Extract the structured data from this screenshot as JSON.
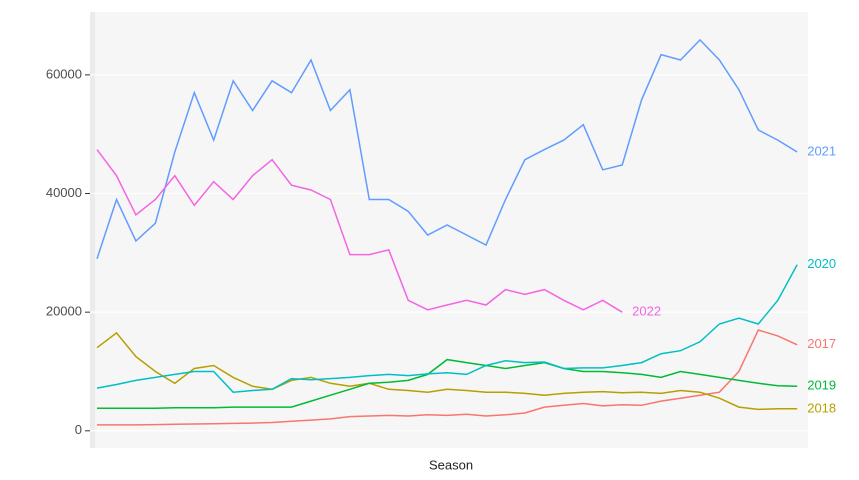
{
  "chart_data": {
    "type": "line",
    "x_label": "Season",
    "x": [
      1,
      11,
      21,
      31,
      41,
      51,
      61,
      71,
      81,
      91,
      101,
      111,
      121,
      131,
      141,
      151,
      161,
      171,
      181,
      191,
      201,
      211,
      221,
      231,
      241,
      251,
      261,
      271,
      281,
      291,
      301,
      311,
      321,
      331,
      341,
      351,
      361
    ],
    "xlim": [
      1,
      365
    ],
    "ylim": [
      -2900,
      70600
    ],
    "yticks": [
      0,
      20000,
      40000,
      60000
    ],
    "grid": true,
    "series": [
      {
        "name": "2017",
        "color": "#F8766D",
        "values": [
          1000,
          1000,
          1000,
          1050,
          1100,
          1150,
          1200,
          1250,
          1300,
          1400,
          1600,
          1800,
          2000,
          2400,
          2500,
          2600,
          2500,
          2700,
          2600,
          2800,
          2500,
          2700,
          3000,
          4000,
          4300,
          4600,
          4200,
          4400,
          4300,
          5000,
          5500,
          6000,
          6500,
          10000,
          17000,
          16000,
          14500
        ]
      },
      {
        "name": "2018",
        "color": "#B79F00",
        "values": [
          14000,
          16500,
          12500,
          10000,
          8000,
          10500,
          11000,
          9000,
          7500,
          7000,
          8500,
          9000,
          8000,
          7500,
          8000,
          7000,
          6800,
          6500,
          7000,
          6800,
          6500,
          6500,
          6300,
          6000,
          6300,
          6500,
          6600,
          6400,
          6500,
          6300,
          6800,
          6500,
          5500,
          4000,
          3600,
          3700,
          3700
        ]
      },
      {
        "name": "2019",
        "color": "#00BA38",
        "values": [
          3800,
          3800,
          3800,
          3800,
          3900,
          3900,
          3900,
          4000,
          4000,
          4000,
          4000,
          5000,
          6000,
          7000,
          8000,
          8200,
          8500,
          9500,
          12000,
          11500,
          11000,
          10500,
          11000,
          11500,
          10500,
          10000,
          10000,
          9800,
          9500,
          9000,
          10000,
          9500,
          9000,
          8500,
          8000,
          7600,
          7500
        ]
      },
      {
        "name": "2020",
        "color": "#00BFC4",
        "values": [
          7200,
          7800,
          8500,
          9000,
          9500,
          10000,
          10000,
          6500,
          6800,
          7000,
          8800,
          8600,
          8800,
          9000,
          9300,
          9500,
          9300,
          9600,
          9800,
          9500,
          11000,
          11800,
          11500,
          11600,
          10500,
          10600,
          10600,
          11000,
          11500,
          13000,
          13500,
          15000,
          18000,
          19000,
          18000,
          22000,
          28000
        ]
      },
      {
        "name": "2021",
        "color": "#619CFF",
        "values": [
          29000,
          39000,
          32000,
          35000,
          47000,
          57000,
          49000,
          59000,
          54000,
          59000,
          57000,
          62500,
          54000,
          57500,
          39000,
          39000,
          37000,
          33000,
          34700,
          33000,
          31300,
          39000,
          45700,
          47400,
          49000,
          51600,
          44000,
          44800,
          55800,
          63400,
          62500,
          65900,
          62500,
          57500,
          50700,
          49000,
          47000
        ]
      },
      {
        "name": "2022",
        "color": "#F564E3",
        "values": [
          47400,
          43000,
          36400,
          39000,
          43000,
          38000,
          42000,
          39000,
          43000,
          45700,
          41400,
          40600,
          39000,
          29700,
          29700,
          30500,
          22000,
          20400,
          21200,
          22000,
          21200,
          23800,
          23000,
          23800,
          22000,
          20400,
          22000,
          20000,
          null,
          null,
          null,
          null,
          null,
          null,
          null,
          null,
          null
        ]
      }
    ]
  }
}
